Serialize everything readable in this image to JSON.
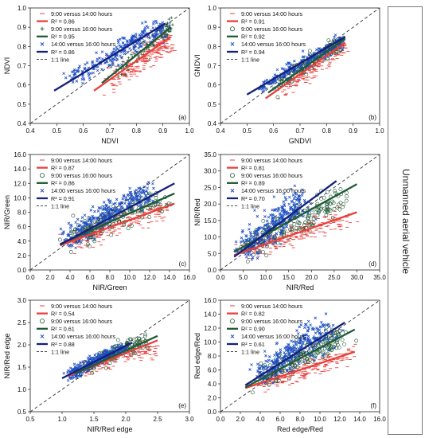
{
  "side_label": "Unmanned aerial vehicle",
  "colors": {
    "9_14": "#e8403c",
    "9_16": "#1f5a36",
    "14_16": "#1e4fc4",
    "fit_14_16": "#14207a",
    "one_to_one": "#333333"
  },
  "legend_labels": {
    "series_9_14": "9:00 versus 14:00 hours",
    "series_9_16": "9:00 versus 16:00 hours",
    "series_14_16": "14:00 versus 16:00 hours",
    "one_to_one": "1:1 line"
  },
  "chart_data": [
    {
      "panel": "(a)",
      "type": "scatter",
      "xlabel": "NDVI",
      "ylabel": "NDVI",
      "xlim": [
        0.4,
        1.0
      ],
      "ylim": [
        0.4,
        1.0
      ],
      "xticks": [
        "0.4",
        "0.5",
        "0.6",
        "0.7",
        "0.8",
        "0.9",
        "1.0"
      ],
      "yticks": [
        "0.4",
        "0.5",
        "0.6",
        "0.7",
        "0.8",
        "0.9",
        "1.0"
      ],
      "one_to_one": true,
      "series": [
        {
          "name": "9:00 versus 14:00 hours",
          "key": "9_14",
          "marker": "dash",
          "r2": "R² = 0.86",
          "fit": [
            [
              0.64,
              0.57
            ],
            [
              0.93,
              0.85
            ]
          ],
          "cluster": [
            [
              0.7,
              0.62
            ],
            [
              0.8,
              0.7
            ],
            [
              0.88,
              0.78
            ],
            [
              0.92,
              0.83
            ]
          ],
          "spread": 0.03,
          "n": 220
        },
        {
          "name": "9:00 versus 16:00 hours",
          "key": "9_16",
          "marker": "plus",
          "r2": "R² = 0.95",
          "fit": [
            [
              0.67,
              0.61
            ],
            [
              0.93,
              0.9
            ]
          ],
          "cluster": [
            [
              0.72,
              0.67
            ],
            [
              0.82,
              0.77
            ],
            [
              0.9,
              0.87
            ],
            [
              0.93,
              0.91
            ]
          ],
          "spread": 0.018,
          "n": 90
        },
        {
          "name": "14:00 versus 16:00 hours",
          "key": "14_16",
          "marker": "cross",
          "r2": "R² = 0.86",
          "fit": [
            [
              0.49,
              0.57
            ],
            [
              0.91,
              0.92
            ]
          ],
          "cluster": [
            [
              0.55,
              0.63
            ],
            [
              0.7,
              0.74
            ],
            [
              0.8,
              0.84
            ],
            [
              0.9,
              0.9
            ]
          ],
          "spread": 0.025,
          "n": 260
        }
      ]
    },
    {
      "panel": "(b)",
      "type": "scatter",
      "xlabel": "GNDVI",
      "ylabel": "GNDVI",
      "xlim": [
        0.4,
        1.0
      ],
      "ylim": [
        0.4,
        1.0
      ],
      "xticks": [
        "0.4",
        "0.5",
        "0.6",
        "0.7",
        "0.8",
        "0.9",
        "1.0"
      ],
      "yticks": [
        "0.4",
        "0.5",
        "0.6",
        "0.7",
        "0.8",
        "0.9",
        "1.0"
      ],
      "one_to_one": true,
      "series": [
        {
          "name": "9:00 versus 14:00 hours",
          "key": "9_14",
          "marker": "dash",
          "r2": "R² = 0.91",
          "fit": [
            [
              0.57,
              0.53
            ],
            [
              0.87,
              0.82
            ]
          ],
          "cluster": [
            [
              0.62,
              0.56
            ],
            [
              0.72,
              0.65
            ],
            [
              0.8,
              0.74
            ],
            [
              0.86,
              0.8
            ]
          ],
          "spread": 0.022,
          "n": 180
        },
        {
          "name": "9:00 versus 16:00 hours",
          "key": "9_16",
          "marker": "circle",
          "r2": "R² = 0.92",
          "fit": [
            [
              0.58,
              0.56
            ],
            [
              0.87,
              0.84
            ]
          ],
          "cluster": [
            [
              0.62,
              0.6
            ],
            [
              0.72,
              0.7
            ],
            [
              0.8,
              0.78
            ],
            [
              0.86,
              0.83
            ]
          ],
          "spread": 0.018,
          "n": 160
        },
        {
          "name": "14:00 versus 16:00 hours",
          "key": "14_16",
          "marker": "cross",
          "r2": "R² = 0.94",
          "fit": [
            [
              0.5,
              0.55
            ],
            [
              0.87,
              0.85
            ]
          ],
          "cluster": [
            [
              0.55,
              0.58
            ],
            [
              0.67,
              0.68
            ],
            [
              0.77,
              0.76
            ],
            [
              0.86,
              0.83
            ]
          ],
          "spread": 0.016,
          "n": 240
        }
      ]
    },
    {
      "panel": "(c)",
      "type": "scatter",
      "xlabel": "NIR/Green",
      "ylabel": "NIR/Green",
      "xlim": [
        0.0,
        16.0
      ],
      "ylim": [
        0.0,
        16.0
      ],
      "xticks": [
        "0.0",
        "2.0",
        "4.0",
        "6.0",
        "8.0",
        "10.0",
        "12.0",
        "14.0",
        "16.0"
      ],
      "yticks": [
        "0.0",
        "2.0",
        "4.0",
        "6.0",
        "8.0",
        "10.0",
        "12.0",
        "14.0",
        "16.0"
      ],
      "one_to_one": true,
      "series": [
        {
          "name": "9:00 versus 14:00 hours",
          "key": "9_14",
          "marker": "dash",
          "r2": "R² = 0.87",
          "fit": [
            [
              3.0,
              3.4
            ],
            [
              14.5,
              9.2
            ]
          ],
          "cluster": [
            [
              4.0,
              3.8
            ],
            [
              7.0,
              5.3
            ],
            [
              10.0,
              6.8
            ],
            [
              13.5,
              8.6
            ]
          ],
          "spread": 0.7,
          "n": 220
        },
        {
          "name": "9:00 versus 16:00 hours",
          "key": "9_16",
          "marker": "circle",
          "r2": "R² = 0.86",
          "fit": [
            [
              3.0,
              3.6
            ],
            [
              14.5,
              10.6
            ]
          ],
          "cluster": [
            [
              4.0,
              4.2
            ],
            [
              7.0,
              6.2
            ],
            [
              10.0,
              8.2
            ],
            [
              13.5,
              10.2
            ]
          ],
          "spread": 0.9,
          "n": 180
        },
        {
          "name": "14:00 versus 16:00 hours",
          "key": "14_16",
          "marker": "cross",
          "r2": "R² = 0.91",
          "fit": [
            [
              3.0,
              3.5
            ],
            [
              14.5,
              12.0
            ]
          ],
          "cluster": [
            [
              3.8,
              4.0
            ],
            [
              6.5,
              6.8
            ],
            [
              9.0,
              9.0
            ],
            [
              12.0,
              10.8
            ]
          ],
          "spread": 0.8,
          "n": 300
        }
      ]
    },
    {
      "panel": "(d)",
      "type": "scatter",
      "xlabel": "NIR/Red",
      "ylabel": "NIR/Red",
      "xlim": [
        0.0,
        35.0
      ],
      "ylim": [
        0.0,
        35.0
      ],
      "xticks": [
        "0.0",
        "5.0",
        "10.0",
        "15.0",
        "20.0",
        "25.0",
        "30.0",
        "35.0"
      ],
      "yticks": [
        "0.0",
        "5.0",
        "10.0",
        "15.0",
        "20.0",
        "25.0",
        "30.0",
        "35.0"
      ],
      "one_to_one": true,
      "series": [
        {
          "name": "9:00 versus 14:00 hours",
          "key": "9_14",
          "marker": "dash",
          "r2": "R² = 0.81",
          "fit": [
            [
              3.0,
              4.5
            ],
            [
              30.0,
              17.5
            ]
          ],
          "cluster": [
            [
              5.0,
              5.5
            ],
            [
              12.0,
              9.0
            ],
            [
              20.0,
              12.5
            ],
            [
              28.0,
              16.0
            ]
          ],
          "spread": 1.6,
          "n": 230
        },
        {
          "name": "9:00 versus 16:00 hours",
          "key": "9_16",
          "marker": "circle",
          "r2": "R² = 0.89",
          "fit": [
            [
              3.0,
              5.5
            ],
            [
              30.0,
              26.0
            ]
          ],
          "cluster": [
            [
              5.0,
              6.5
            ],
            [
              12.0,
              11.5
            ],
            [
              20.0,
              17.0
            ],
            [
              27.0,
              22.0
            ]
          ],
          "spread": 2.0,
          "n": 190
        },
        {
          "name": "14:00 versus 16:00 hours",
          "key": "14_16",
          "marker": "cross",
          "r2": "R² = 0.70",
          "fit": [
            [
              3.0,
              4.0
            ],
            [
              25.5,
              27.0
            ]
          ],
          "cluster": [
            [
              5.0,
              6.0
            ],
            [
              10.0,
              12.0
            ],
            [
              14.0,
              17.0
            ],
            [
              18.0,
              20.5
            ]
          ],
          "spread": 2.2,
          "n": 300
        }
      ]
    },
    {
      "panel": "(e)",
      "type": "scatter",
      "xlabel": "NIR/Red edge",
      "ylabel": "NIR/Red edge",
      "xlim": [
        0.5,
        3.0
      ],
      "ylim": [
        0.5,
        3.0
      ],
      "xticks": [
        "0.5",
        "1.0",
        "1.5",
        "2.0",
        "2.5",
        "3.0"
      ],
      "yticks": [
        "0.5",
        "1.0",
        "1.5",
        "2.0",
        "2.5",
        "3.0"
      ],
      "one_to_one": true,
      "series": [
        {
          "name": "9:00 versus 14:00 hours",
          "key": "9_14",
          "marker": "dash",
          "r2": "R² = 0.54",
          "fit": [
            [
              1.1,
              1.3
            ],
            [
              2.5,
              2.1
            ]
          ],
          "cluster": [
            [
              1.3,
              1.4
            ],
            [
              1.7,
              1.6
            ],
            [
              2.1,
              1.8
            ],
            [
              2.5,
              1.9
            ]
          ],
          "spread": 0.08,
          "n": 140
        },
        {
          "name": "9:00 versus 16:00 hours",
          "key": "9_16",
          "marker": "circle",
          "r2": "R² = 0.61",
          "fit": [
            [
              1.2,
              1.35
            ],
            [
              2.5,
              2.2
            ]
          ],
          "cluster": [
            [
              1.3,
              1.45
            ],
            [
              1.7,
              1.75
            ],
            [
              2.0,
              1.95
            ],
            [
              2.3,
              2.05
            ]
          ],
          "spread": 0.08,
          "n": 140
        },
        {
          "name": "14:00 versus 16:00 hours",
          "key": "14_16",
          "marker": "cross",
          "r2": "R² = 0.88",
          "fit": [
            [
              1.0,
              1.25
            ],
            [
              2.1,
              2.05
            ]
          ],
          "cluster": [
            [
              1.1,
              1.3
            ],
            [
              1.4,
              1.55
            ],
            [
              1.7,
              1.75
            ],
            [
              2.0,
              1.95
            ]
          ],
          "spread": 0.06,
          "n": 300
        }
      ]
    },
    {
      "panel": "(f)",
      "type": "scatter",
      "xlabel": "Red edge/Red",
      "ylabel": "Red edge/Red",
      "xlim": [
        0.0,
        16.0
      ],
      "ylim": [
        0.0,
        16.0
      ],
      "xticks": [
        "0.0",
        "2.0",
        "4.0",
        "6.0",
        "8.0",
        "10.0",
        "12.0",
        "14.0",
        "16.0"
      ],
      "yticks": [
        "0.0",
        "2.0",
        "4.0",
        "6.0",
        "8.0",
        "10.0",
        "12.0",
        "14.0",
        "16.0"
      ],
      "one_to_one": true,
      "series": [
        {
          "name": "9:00 versus 14:00 hours",
          "key": "9_14",
          "marker": "dash",
          "r2": "R² = 0.82",
          "fit": [
            [
              2.5,
              3.4
            ],
            [
              13.5,
              8.6
            ]
          ],
          "cluster": [
            [
              4.0,
              4.0
            ],
            [
              7.0,
              5.3
            ],
            [
              10.0,
              6.8
            ],
            [
              13.0,
              8.3
            ]
          ],
          "spread": 0.7,
          "n": 220
        },
        {
          "name": "9:00 versus 16:00 hours",
          "key": "9_16",
          "marker": "circle",
          "r2": "R² = 0.90",
          "fit": [
            [
              2.5,
              3.5
            ],
            [
              13.5,
              11.8
            ]
          ],
          "cluster": [
            [
              4.0,
              4.5
            ],
            [
              7.0,
              7.0
            ],
            [
              10.0,
              9.2
            ],
            [
              12.5,
              11.0
            ]
          ],
          "spread": 0.9,
          "n": 200
        },
        {
          "name": "14:00 versus 16:00 hours",
          "key": "14_16",
          "marker": "cross",
          "r2": "R² = 0.61",
          "fit": [
            [
              2.5,
              3.8
            ],
            [
              12.5,
              12.8
            ]
          ],
          "cluster": [
            [
              4.0,
              5.0
            ],
            [
              6.5,
              8.0
            ],
            [
              8.5,
              10.0
            ],
            [
              11.0,
              11.5
            ]
          ],
          "spread": 1.1,
          "n": 300
        }
      ]
    }
  ]
}
